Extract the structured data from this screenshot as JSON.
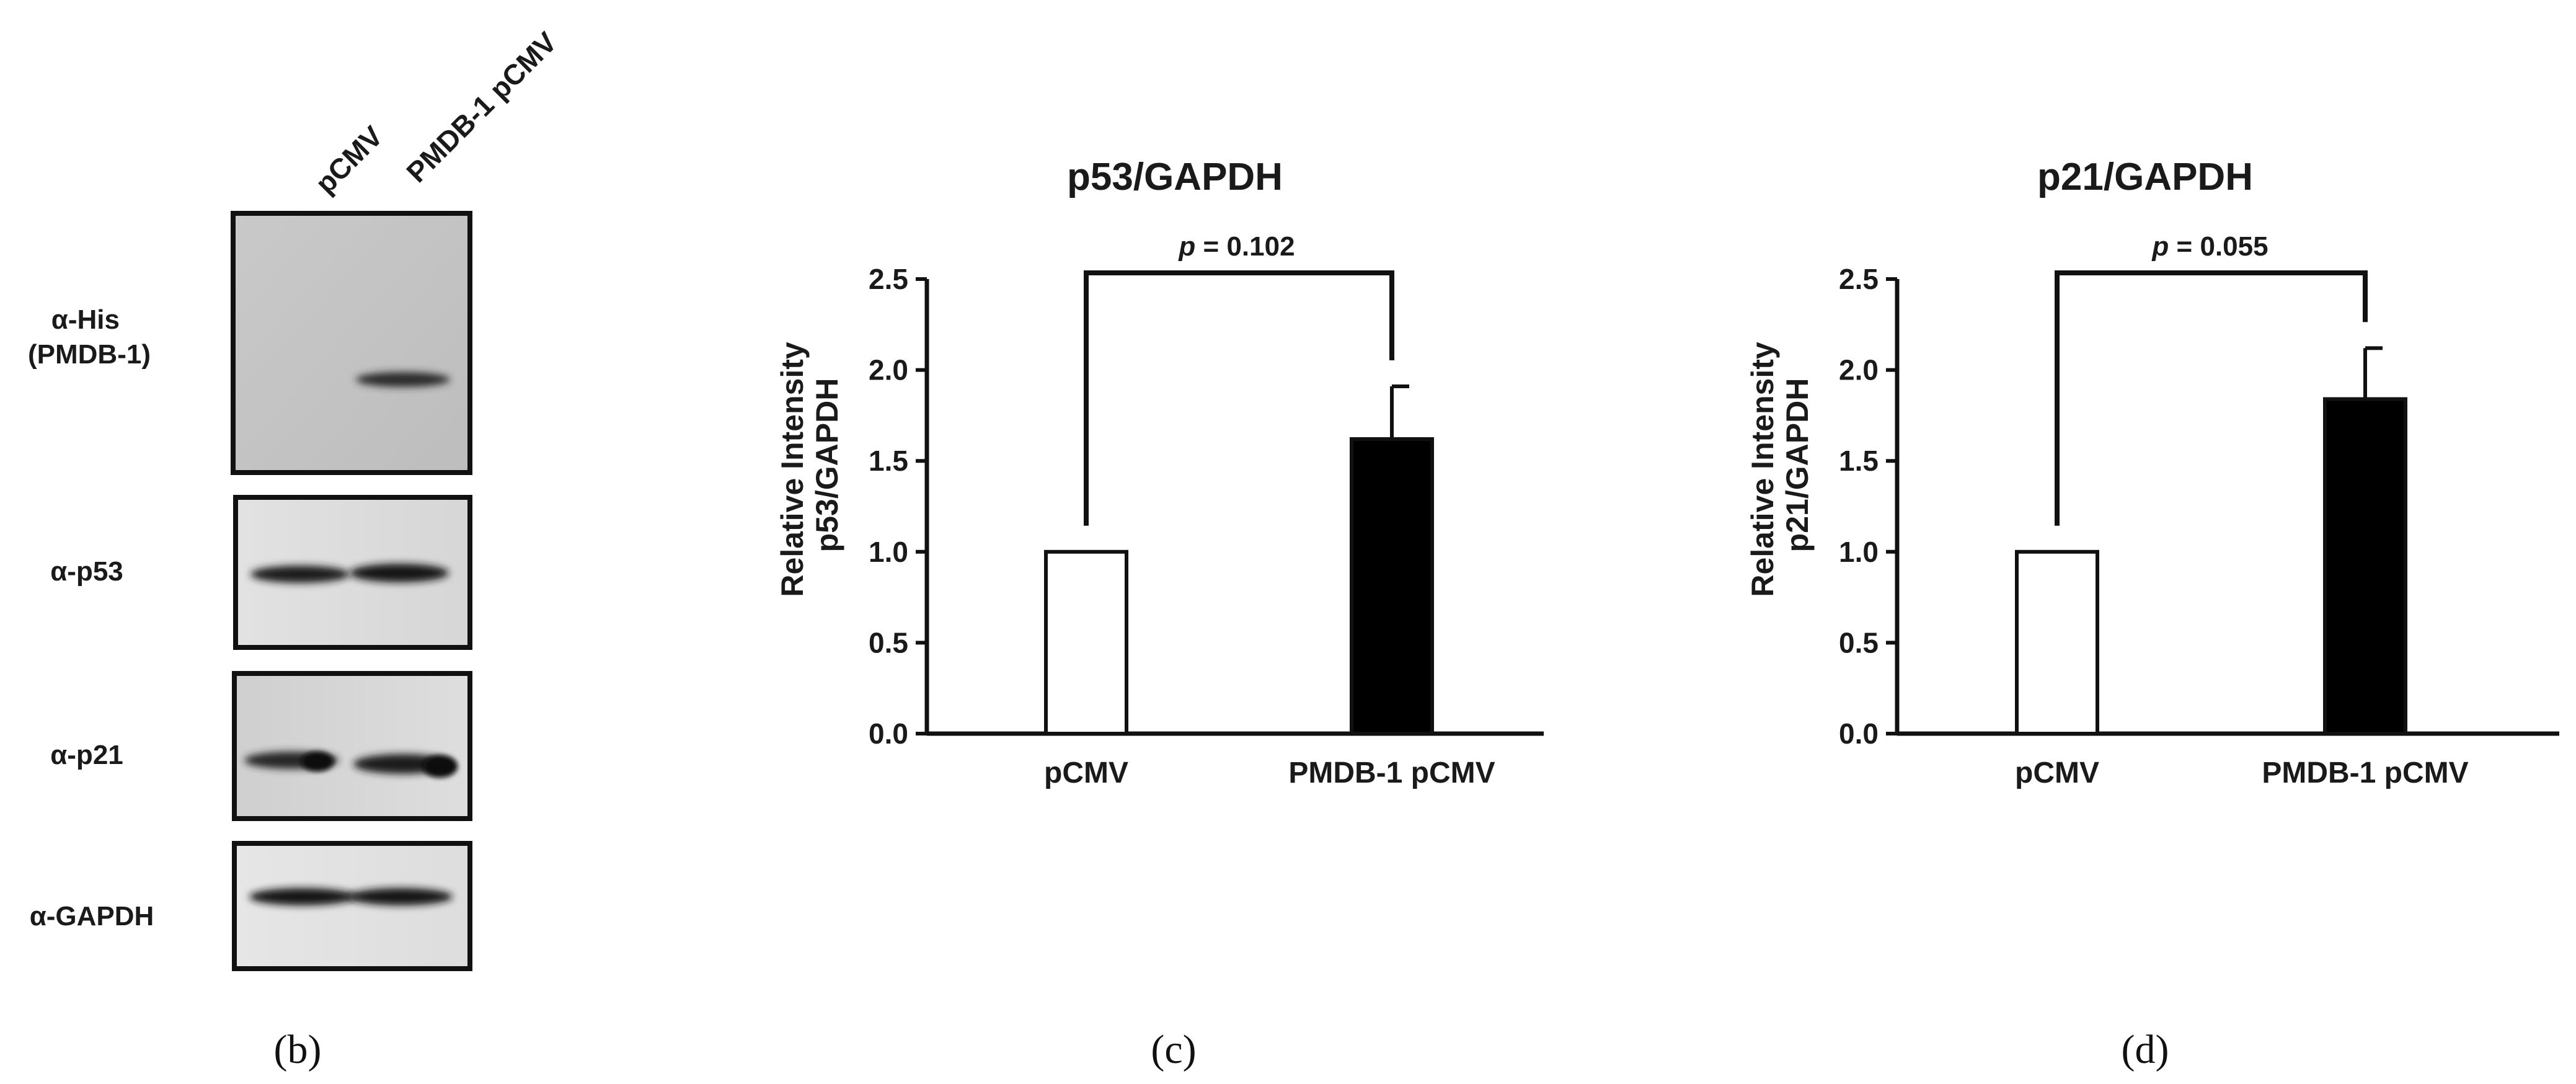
{
  "blot": {
    "lanes": [
      "pCMV",
      "PMDB-1 pCMV"
    ],
    "rows": [
      {
        "label_lines": [
          "α-His",
          "(PMDB-1)"
        ]
      },
      {
        "label_lines": [
          "α-p53"
        ]
      },
      {
        "label_lines": [
          "α-p21"
        ]
      },
      {
        "label_lines": [
          "α-GAPDH"
        ]
      }
    ],
    "panel_label": "(b)"
  },
  "chart_data": [
    {
      "type": "bar",
      "panel_label": "(c)",
      "title": "p53/GAPDH",
      "ylabel_lines": [
        "Relative Intensity",
        "p53/GAPDH"
      ],
      "xlabel": "",
      "categories": [
        "pCMV",
        "PMDB-1 pCMV"
      ],
      "values": [
        1.0,
        1.62
      ],
      "errors": [
        0,
        0.29
      ],
      "bar_colors": [
        "#ffffff",
        "#000000"
      ],
      "ylim": [
        0,
        2.5
      ],
      "yticks": [
        "0.0",
        "0.5",
        "1.0",
        "1.5",
        "2.0",
        "2.5"
      ],
      "significance": {
        "p_symbol": "p",
        "p_text": " = 0.102"
      },
      "grid": false
    },
    {
      "type": "bar",
      "panel_label": "(d)",
      "title": "p21/GAPDH",
      "ylabel_lines": [
        "Relative Intensity",
        "p21/GAPDH"
      ],
      "xlabel": "",
      "categories": [
        "pCMV",
        "PMDB-1 pCMV"
      ],
      "values": [
        1.0,
        1.84
      ],
      "errors": [
        0,
        0.28
      ],
      "bar_colors": [
        "#ffffff",
        "#000000"
      ],
      "ylim": [
        0,
        2.5
      ],
      "yticks": [
        "0.0",
        "0.5",
        "1.0",
        "1.5",
        "2.0",
        "2.5"
      ],
      "significance": {
        "p_symbol": "p",
        "p_text": " = 0.055"
      },
      "grid": false
    }
  ]
}
